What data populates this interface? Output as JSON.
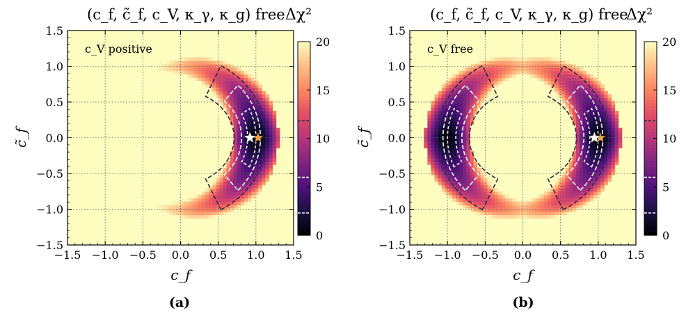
{
  "chart_data": [
    {
      "type": "heatmap",
      "panel_label": "(a)",
      "title": "(c_f, c̃_f, c_V, κ_γ, κ_g) free",
      "colorbar_label": "Δχ²",
      "annotation": "c_V positive",
      "xlabel": "c_f",
      "ylabel": "c̃_f",
      "xlim": [
        -1.5,
        1.5
      ],
      "ylim": [
        -1.5,
        1.5
      ],
      "x_ticks": [
        "−1.5",
        "−1.0",
        "−0.5",
        "0.0",
        "0.5",
        "1.0",
        "1.5"
      ],
      "y_ticks": [
        "−1.5",
        "−1.0",
        "−0.5",
        "0.0",
        "0.5",
        "1.0",
        "1.5"
      ],
      "colorbar_range": [
        0,
        20
      ],
      "colorbar_ticks": [
        "0",
        "5",
        "10",
        "15",
        "20"
      ],
      "grid": true,
      "best_fit": {
        "x": 0.92,
        "y": 0.0
      },
      "sm_point": {
        "x": 1.0,
        "y": 0.0
      },
      "regions": [
        {
          "shape": "crescent",
          "center_x": 1.0,
          "depth_min": 0,
          "edge_value": 20,
          "radius": 1.0
        }
      ],
      "contour_levels": [
        2.3,
        5.99,
        11.83
      ]
    },
    {
      "type": "heatmap",
      "panel_label": "(b)",
      "title": "(c_f, c̃_f, c_V, κ_γ, κ_g) free",
      "colorbar_label": "Δχ²",
      "annotation": "c_V free",
      "xlabel": "c_f",
      "ylabel": "c̃_f",
      "xlim": [
        -1.5,
        1.5
      ],
      "ylim": [
        -1.5,
        1.5
      ],
      "x_ticks": [
        "−1.5",
        "−1.0",
        "−0.5",
        "0.0",
        "0.5",
        "1.0",
        "1.5"
      ],
      "y_ticks": [
        "−1.5",
        "−1.0",
        "−0.5",
        "0.0",
        "0.5",
        "1.0",
        "1.5"
      ],
      "colorbar_range": [
        0,
        20
      ],
      "colorbar_ticks": [
        "0",
        "5",
        "10",
        "15",
        "20"
      ],
      "grid": true,
      "best_fit": {
        "x": 0.95,
        "y": 0.0
      },
      "sm_point": {
        "x": 1.0,
        "y": 0.0
      },
      "regions": [
        {
          "shape": "crescent",
          "center_x": 1.0,
          "depth_min": 0,
          "edge_value": 20,
          "radius": 1.0
        },
        {
          "shape": "crescent",
          "center_x": -1.0,
          "depth_min": 0,
          "edge_value": 20,
          "radius": 1.0
        }
      ],
      "contour_levels": [
        2.3,
        5.99,
        11.83
      ]
    }
  ]
}
